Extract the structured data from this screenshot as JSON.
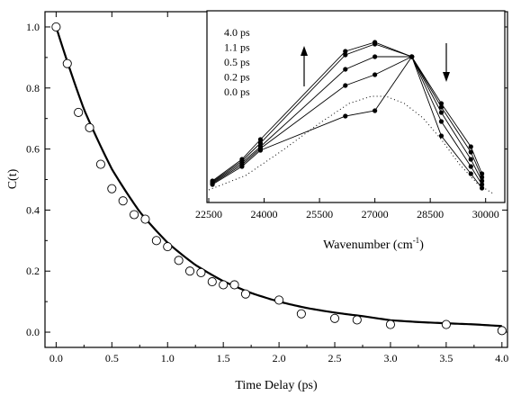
{
  "chart_data": [
    {
      "type": "scatter",
      "title": "",
      "xlabel": "Time Delay (ps)",
      "ylabel": "C(t)",
      "xlim": [
        -0.1,
        4.05
      ],
      "ylim": [
        -0.05,
        1.05
      ],
      "xticks": [
        "0.0",
        "0.5",
        "1.0",
        "1.5",
        "2.0",
        "2.5",
        "3.0",
        "3.5",
        "4.0"
      ],
      "yticks": [
        "0.0",
        "0.2",
        "0.4",
        "0.6",
        "0.8",
        "1.0"
      ],
      "grid": false,
      "series": [
        {
          "marker": "open-circle",
          "x": [
            0.0,
            0.1,
            0.2,
            0.3,
            0.4,
            0.5,
            0.6,
            0.7,
            0.8,
            0.9,
            1.0,
            1.1,
            1.2,
            1.3,
            1.4,
            1.5,
            1.6,
            1.7,
            2.0,
            2.2,
            2.5,
            2.7,
            3.0,
            3.5,
            4.0
          ],
          "y": [
            1.0,
            0.88,
            0.72,
            0.67,
            0.55,
            0.47,
            0.43,
            0.385,
            0.37,
            0.3,
            0.28,
            0.235,
            0.2,
            0.195,
            0.165,
            0.155,
            0.155,
            0.125,
            0.105,
            0.06,
            0.045,
            0.04,
            0.025,
            0.025,
            0.005
          ]
        },
        {
          "style": "solid-thick-line",
          "model": "exponential decay fit",
          "x": [
            0.0,
            0.25,
            0.5,
            0.75,
            1.0,
            1.25,
            1.5,
            1.75,
            2.0,
            2.25,
            2.5,
            2.75,
            3.0,
            3.25,
            3.5,
            3.75,
            4.0
          ],
          "y": [
            1.0,
            0.73,
            0.535,
            0.397,
            0.298,
            0.227,
            0.175,
            0.137,
            0.109,
            0.088,
            0.073,
            0.061,
            0.042,
            0.036,
            0.032,
            0.028,
            0.019
          ]
        }
      ]
    },
    {
      "type": "line",
      "title": "",
      "xlabel": "Wavenumber (cm⁻¹)",
      "xlabel_main": "Wavenumber (cm",
      "xlabel_sup": "-1",
      "xlabel_close": ")",
      "ylabel": "",
      "xlim": [
        22500,
        30300
      ],
      "ylim": [
        0,
        1.0
      ],
      "xticks": [
        "22500",
        "24000",
        "25500",
        "27000",
        "28500",
        "30000"
      ],
      "legend_placement": "top-left",
      "legend_labels": [
        "4.0 ps",
        "1.1 ps",
        "0.5 ps",
        "0.2 ps",
        "0.0 ps"
      ],
      "arrows": [
        "up",
        "down"
      ],
      "x": [
        22600,
        23400,
        23900,
        26200,
        27000,
        28000,
        28800,
        29600,
        29900
      ],
      "series": [
        {
          "name": "4.0 ps",
          "style": "solid-with-dots",
          "y": [
            0.07,
            0.19,
            0.3,
            0.79,
            0.84,
            0.76,
            0.5,
            0.26,
            0.11
          ]
        },
        {
          "name": "1.1 ps",
          "style": "solid-with-dots",
          "y": [
            0.065,
            0.18,
            0.28,
            0.77,
            0.83,
            0.76,
            0.48,
            0.23,
            0.09
          ]
        },
        {
          "name": "0.5 ps",
          "style": "solid-with-dots",
          "y": [
            0.06,
            0.17,
            0.26,
            0.69,
            0.76,
            0.76,
            0.45,
            0.19,
            0.07
          ]
        },
        {
          "name": "0.2 ps",
          "style": "solid-with-dots",
          "y": [
            0.055,
            0.16,
            0.25,
            0.6,
            0.66,
            0.76,
            0.4,
            0.15,
            0.05
          ]
        },
        {
          "name": "0.0 ps",
          "style": "solid-with-dots",
          "y": [
            0.05,
            0.15,
            0.24,
            0.43,
            0.46,
            0.76,
            0.32,
            0.11,
            0.03
          ]
        },
        {
          "name": "",
          "style": "dotted",
          "x": [
            22500,
            23500,
            24500,
            25500,
            26300,
            26900,
            27300,
            27800,
            28300,
            28800,
            29300,
            29800,
            30200
          ],
          "y": [
            0.02,
            0.1,
            0.24,
            0.39,
            0.5,
            0.54,
            0.54,
            0.5,
            0.42,
            0.3,
            0.16,
            0.05,
            0.0
          ]
        }
      ]
    }
  ]
}
